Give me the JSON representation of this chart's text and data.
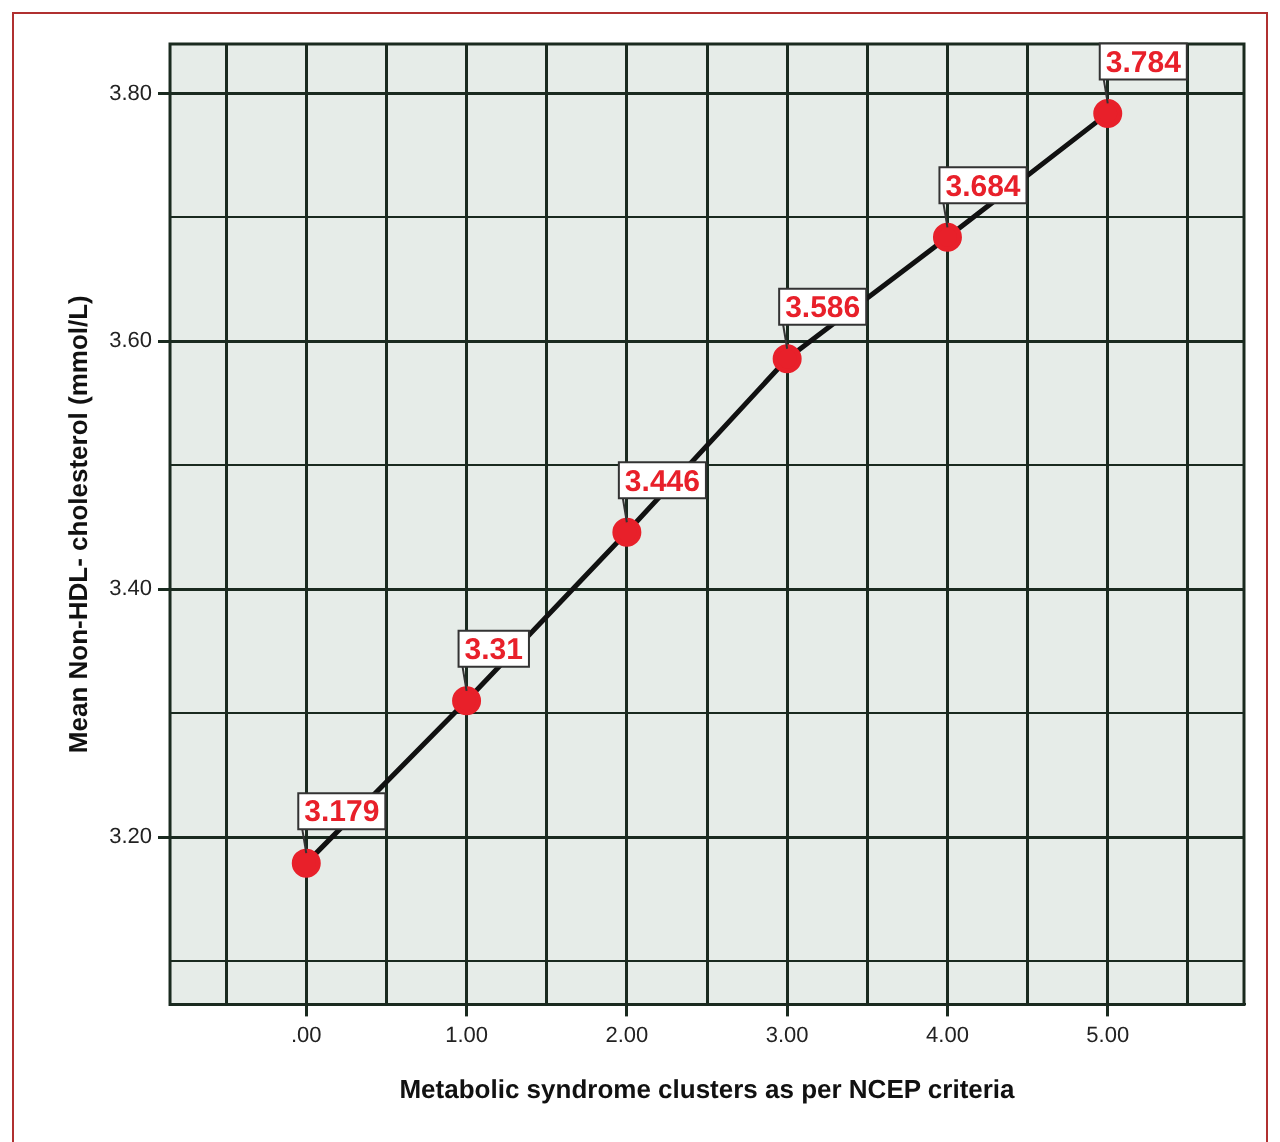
{
  "chart_data": {
    "type": "line",
    "xlabel": "Metabolic syndrome clusters as per NCEP criteria",
    "ylabel": "Mean Non-HDL- cholesterol (mmol/L)",
    "x": [
      0,
      1,
      2,
      3,
      4,
      5
    ],
    "series": [
      {
        "color": "#e8202a",
        "values": [
          3.179,
          3.31,
          3.446,
          3.586,
          3.684,
          3.784
        ]
      }
    ],
    "data_labels": true,
    "marker": "circle",
    "line_style": "solid",
    "grid": true,
    "xlim": [
      -0.85,
      5.85
    ],
    "xticks": [
      {
        "value": -0.5,
        "label": null
      },
      {
        "value": 0,
        "label": ".00"
      },
      {
        "value": 0.5,
        "label": null
      },
      {
        "value": 1,
        "label": "1.00"
      },
      {
        "value": 1.5,
        "label": null
      },
      {
        "value": 2,
        "label": "2.00"
      },
      {
        "value": 2.5,
        "label": null
      },
      {
        "value": 3,
        "label": "3.00"
      },
      {
        "value": 3.5,
        "label": null
      },
      {
        "value": 4,
        "label": "4.00"
      },
      {
        "value": 4.5,
        "label": null
      },
      {
        "value": 5,
        "label": "5.00"
      },
      {
        "value": 5.5,
        "label": null
      }
    ],
    "ylim": [
      3.065,
      3.84
    ],
    "yticks": [
      {
        "value": 3.1,
        "label": null
      },
      {
        "value": 3.2,
        "label": "3.20"
      },
      {
        "value": 3.3,
        "label": null
      },
      {
        "value": 3.4,
        "label": "3.40"
      },
      {
        "value": 3.5,
        "label": null
      },
      {
        "value": 3.6,
        "label": "3.60"
      },
      {
        "value": 3.7,
        "label": null
      },
      {
        "value": 3.8,
        "label": "3.80"
      }
    ]
  }
}
